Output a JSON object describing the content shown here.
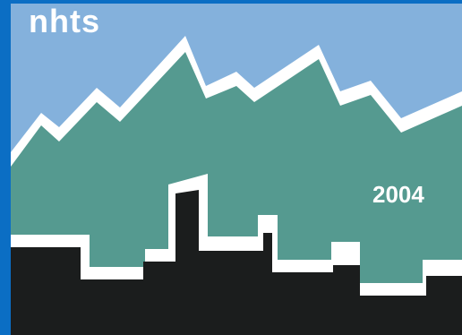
{
  "logo": {
    "wordmark": "nhts",
    "year": "2004"
  },
  "colors": {
    "border": "#0b6ec4",
    "sky": "#84b1dc",
    "mountain": "#559a90",
    "outline": "#ffffff",
    "skyline": "#1b1d1d"
  }
}
